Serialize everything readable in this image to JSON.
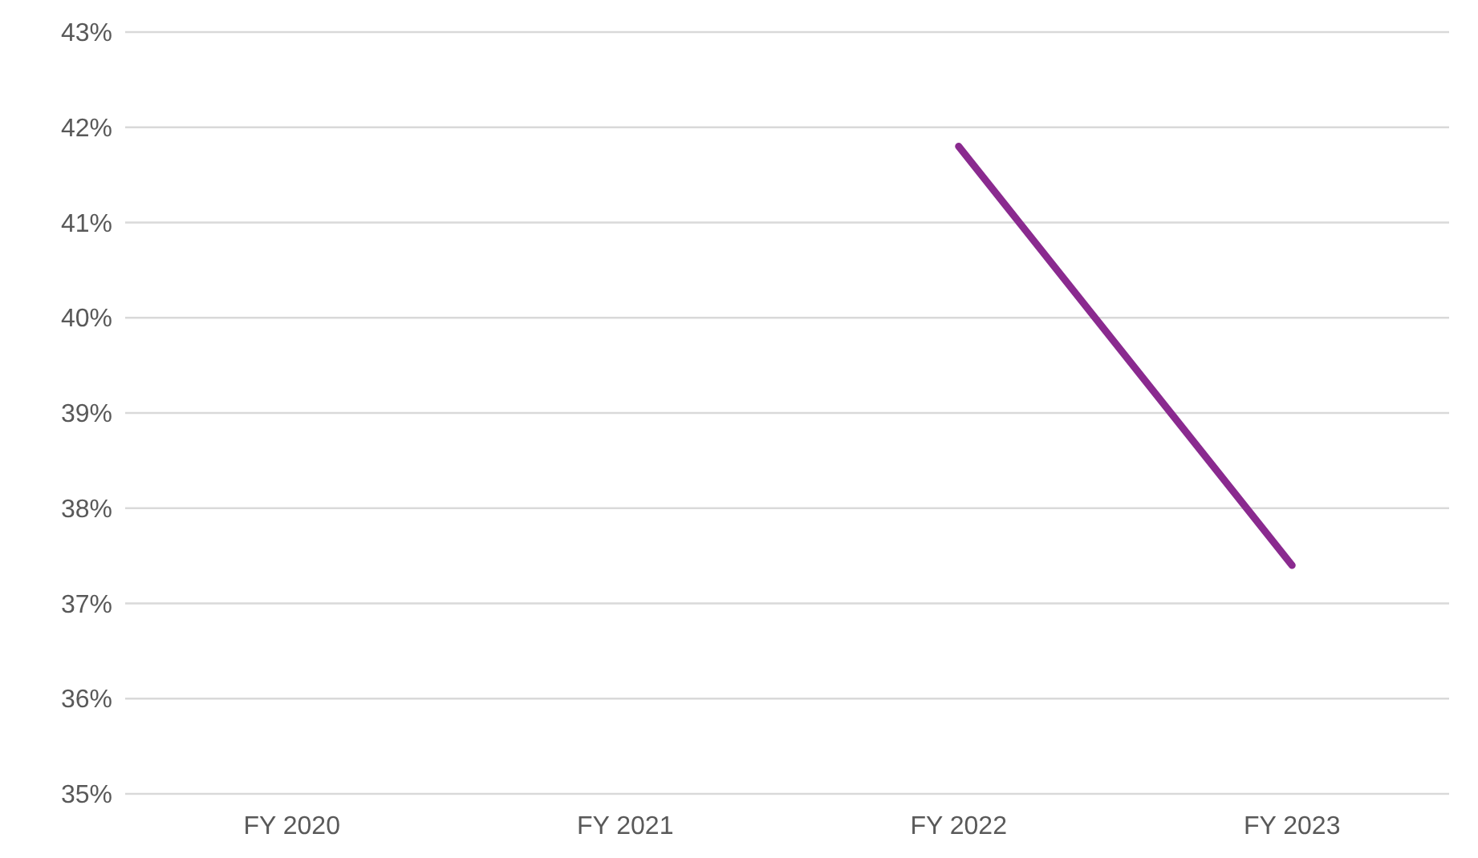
{
  "chart_data": {
    "type": "line",
    "categories": [
      "FY 2020",
      "FY 2021",
      "FY 2022",
      "FY 2023"
    ],
    "series": [
      {
        "color": "#8a2a8f",
        "values": [
          null,
          null,
          41.8,
          37.4
        ]
      }
    ],
    "ylim": [
      35,
      43
    ],
    "yticks": [
      {
        "value": 35,
        "label": "35%"
      },
      {
        "value": 36,
        "label": "36%"
      },
      {
        "value": 37,
        "label": "37%"
      },
      {
        "value": 38,
        "label": "38%"
      },
      {
        "value": 39,
        "label": "39%"
      },
      {
        "value": 40,
        "label": "40%"
      },
      {
        "value": 41,
        "label": "41%"
      },
      {
        "value": 42,
        "label": "42%"
      },
      {
        "value": 43,
        "label": "43%"
      }
    ],
    "grid": "y",
    "marker": "none",
    "line_style": "solid"
  }
}
